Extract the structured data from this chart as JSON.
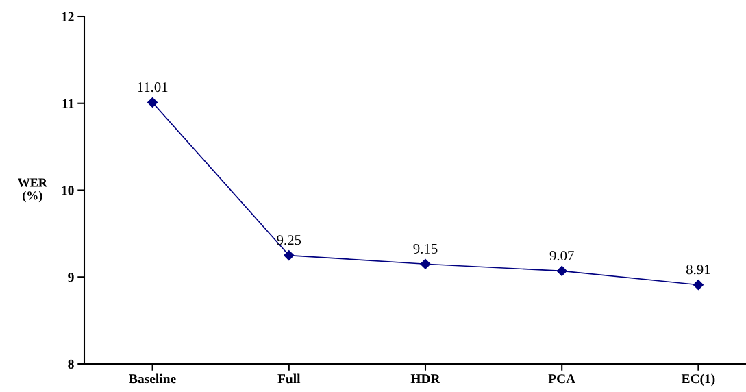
{
  "chart_data": {
    "type": "line",
    "categories": [
      "Baseline",
      "Full",
      "HDR",
      "PCA",
      "EC(1)"
    ],
    "series": [
      {
        "color": "#000080",
        "values": [
          11.01,
          9.25,
          9.15,
          9.07,
          8.91
        ]
      }
    ],
    "ylabel": "WER\n(%)",
    "ylim": [
      8,
      12
    ],
    "yticks": [
      8,
      9,
      10,
      11,
      12
    ],
    "marker": "diamond",
    "line_style": "solid",
    "data_labels": true,
    "grid": false
  }
}
